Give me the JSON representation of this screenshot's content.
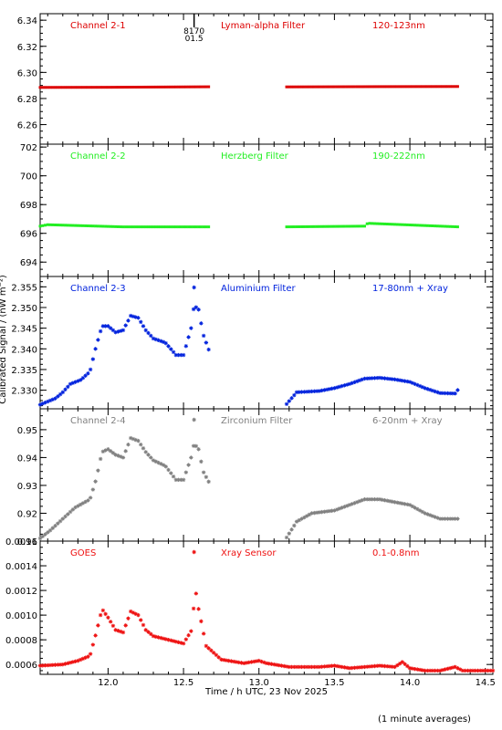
{
  "figure": {
    "ylabel": "Calibrated Signal / (nW m⁻²)",
    "xlabel": "Time / h UTC, 23 Nov 2025",
    "footnote": "(1 minute averages)",
    "xlim": [
      11.55,
      14.55
    ],
    "xticks": [
      12.0,
      12.5,
      13.0,
      13.5,
      14.0,
      14.5
    ],
    "xtick_labels": [
      "12.0",
      "12.5",
      "13.0",
      "13.5",
      "14.0",
      "14.5"
    ],
    "marker_flag": {
      "x": 12.57,
      "top_text": "8170",
      "bottom_text": "01.5"
    }
  },
  "chart_data": [
    {
      "type": "scatter",
      "channel": "Channel 2-1",
      "filter": "Lyman-alpha Filter",
      "band": "120-123nm",
      "color": "#dd0000",
      "ylim": [
        6.245,
        6.345
      ],
      "yticks": [
        6.26,
        6.28,
        6.3,
        6.32,
        6.34
      ],
      "ytick_labels": [
        "6.26",
        "6.28",
        "6.30",
        "6.32",
        "6.34"
      ],
      "marker": "dash",
      "gap": [
        12.68,
        13.18
      ],
      "x_range": [
        11.55,
        14.32
      ],
      "points": [
        [
          11.55,
          6.2885
        ],
        [
          12.0,
          6.2886
        ],
        [
          12.68,
          6.289
        ],
        [
          13.18,
          6.2889
        ],
        [
          13.8,
          6.2891
        ],
        [
          14.32,
          6.2892
        ]
      ]
    },
    {
      "type": "scatter",
      "channel": "Channel 2-2",
      "filter": "Herzberg Filter",
      "band": "190-222nm",
      "color": "#22ee22",
      "ylim": [
        693.0,
        702.2
      ],
      "yticks": [
        694,
        696,
        698,
        700,
        702
      ],
      "ytick_labels": [
        "694",
        "696",
        "698",
        "700",
        "702"
      ],
      "marker": "dash",
      "gap": [
        12.68,
        13.18
      ],
      "x_range": [
        11.55,
        14.32
      ],
      "points": [
        [
          11.55,
          696.5
        ],
        [
          11.6,
          696.6
        ],
        [
          12.1,
          696.45
        ],
        [
          12.68,
          696.45
        ],
        [
          13.18,
          696.45
        ],
        [
          13.7,
          696.5
        ],
        [
          13.72,
          696.7
        ],
        [
          14.32,
          696.45
        ]
      ]
    },
    {
      "type": "scatter",
      "channel": "Channel 2-3",
      "filter": "Aluminium Filter",
      "band": "17-80nm + Xray",
      "color": "#0022dd",
      "ylim": [
        2.3255,
        2.3575
      ],
      "yticks": [
        2.33,
        2.335,
        2.34,
        2.345,
        2.35,
        2.355
      ],
      "ytick_labels": [
        "2.330",
        "2.335",
        "2.340",
        "2.345",
        "2.350",
        "2.355"
      ],
      "marker": "star",
      "top_star_x": 12.57,
      "gap": [
        12.68,
        13.18
      ],
      "x_range": [
        11.55,
        14.32
      ],
      "points": [
        [
          11.55,
          2.3265
        ],
        [
          11.65,
          2.328
        ],
        [
          11.7,
          2.3295
        ],
        [
          11.75,
          2.3315
        ],
        [
          11.82,
          2.3325
        ],
        [
          11.88,
          2.3345
        ],
        [
          11.92,
          2.3405
        ],
        [
          11.96,
          2.3455
        ],
        [
          12.0,
          2.3455
        ],
        [
          12.05,
          2.344
        ],
        [
          12.1,
          2.3445
        ],
        [
          12.15,
          2.348
        ],
        [
          12.2,
          2.3475
        ],
        [
          12.25,
          2.3445
        ],
        [
          12.3,
          2.3425
        ],
        [
          12.38,
          2.3415
        ],
        [
          12.45,
          2.3385
        ],
        [
          12.5,
          2.3385
        ],
        [
          12.55,
          2.345
        ],
        [
          12.57,
          2.3505
        ],
        [
          12.6,
          2.3495
        ],
        [
          12.63,
          2.3435
        ],
        [
          12.68,
          2.3385
        ],
        [
          13.18,
          2.3265
        ],
        [
          13.25,
          2.3295
        ],
        [
          13.4,
          2.3298
        ],
        [
          13.5,
          2.3305
        ],
        [
          13.6,
          2.3315
        ],
        [
          13.7,
          2.3328
        ],
        [
          13.8,
          2.333
        ],
        [
          13.9,
          2.3326
        ],
        [
          14.0,
          2.332
        ],
        [
          14.1,
          2.3305
        ],
        [
          14.2,
          2.3293
        ],
        [
          14.3,
          2.3292
        ],
        [
          14.32,
          2.3302
        ]
      ]
    },
    {
      "type": "scatter",
      "channel": "Channel 2-4",
      "filter": "Zirconium Filter",
      "band": "6-20nm + Xray",
      "color": "#808080",
      "ylim": [
        0.91,
        0.9575
      ],
      "yticks": [
        0.91,
        0.92,
        0.93,
        0.94,
        0.95
      ],
      "ytick_labels": [
        "0.91",
        "0.92",
        "0.93",
        "0.94",
        "0.95"
      ],
      "marker": "star",
      "top_star_x": 12.57,
      "gap": [
        12.68,
        13.18
      ],
      "x_range": [
        11.55,
        14.32
      ],
      "points": [
        [
          11.55,
          0.911
        ],
        [
          11.62,
          0.914
        ],
        [
          11.7,
          0.918
        ],
        [
          11.78,
          0.922
        ],
        [
          11.88,
          0.925
        ],
        [
          11.92,
          0.932
        ],
        [
          11.96,
          0.942
        ],
        [
          12.0,
          0.943
        ],
        [
          12.05,
          0.941
        ],
        [
          12.1,
          0.94
        ],
        [
          12.15,
          0.947
        ],
        [
          12.2,
          0.946
        ],
        [
          12.25,
          0.942
        ],
        [
          12.3,
          0.939
        ],
        [
          12.38,
          0.937
        ],
        [
          12.45,
          0.932
        ],
        [
          12.5,
          0.932
        ],
        [
          12.55,
          0.94
        ],
        [
          12.57,
          0.945
        ],
        [
          12.6,
          0.943
        ],
        [
          12.63,
          0.935
        ],
        [
          12.68,
          0.93
        ],
        [
          13.18,
          0.911
        ],
        [
          13.25,
          0.917
        ],
        [
          13.35,
          0.92
        ],
        [
          13.5,
          0.921
        ],
        [
          13.6,
          0.923
        ],
        [
          13.7,
          0.925
        ],
        [
          13.8,
          0.925
        ],
        [
          13.9,
          0.924
        ],
        [
          14.0,
          0.923
        ],
        [
          14.1,
          0.92
        ],
        [
          14.2,
          0.918
        ],
        [
          14.32,
          0.918
        ]
      ]
    },
    {
      "type": "scatter",
      "channel": "GOES",
      "filter": "Xray Sensor",
      "band": "0.1-0.8nm",
      "color": "#ee1111",
      "ylim": [
        0.00052,
        0.0016
      ],
      "yticks": [
        0.0006,
        0.0008,
        0.001,
        0.0012,
        0.0014,
        0.0016
      ],
      "ytick_labels": [
        "0.0006",
        "0.0008",
        "0.0010",
        "0.0012",
        "0.0014",
        "0.0016"
      ],
      "marker": "star",
      "top_star_x": 12.57,
      "points": [
        [
          11.55,
          0.00059
        ],
        [
          11.7,
          0.0006
        ],
        [
          11.8,
          0.00063
        ],
        [
          11.88,
          0.00067
        ],
        [
          11.92,
          0.00085
        ],
        [
          11.96,
          0.00105
        ],
        [
          12.0,
          0.00098
        ],
        [
          12.05,
          0.00088
        ],
        [
          12.1,
          0.00086
        ],
        [
          12.15,
          0.00103
        ],
        [
          12.2,
          0.001
        ],
        [
          12.25,
          0.00088
        ],
        [
          12.3,
          0.00083
        ],
        [
          12.4,
          0.0008
        ],
        [
          12.5,
          0.00077
        ],
        [
          12.55,
          0.00087
        ],
        [
          12.58,
          0.0012
        ],
        [
          12.6,
          0.00105
        ],
        [
          12.65,
          0.00075
        ],
        [
          12.75,
          0.00064
        ],
        [
          12.9,
          0.00061
        ],
        [
          13.0,
          0.00063
        ],
        [
          13.05,
          0.00061
        ],
        [
          13.2,
          0.00058
        ],
        [
          13.4,
          0.00058
        ],
        [
          13.5,
          0.00059
        ],
        [
          13.6,
          0.00057
        ],
        [
          13.7,
          0.00058
        ],
        [
          13.8,
          0.00059
        ],
        [
          13.9,
          0.00058
        ],
        [
          13.95,
          0.00062
        ],
        [
          14.0,
          0.00057
        ],
        [
          14.1,
          0.00055
        ],
        [
          14.2,
          0.00055
        ],
        [
          14.3,
          0.00058
        ],
        [
          14.35,
          0.00055
        ],
        [
          14.55,
          0.00055
        ]
      ]
    }
  ]
}
